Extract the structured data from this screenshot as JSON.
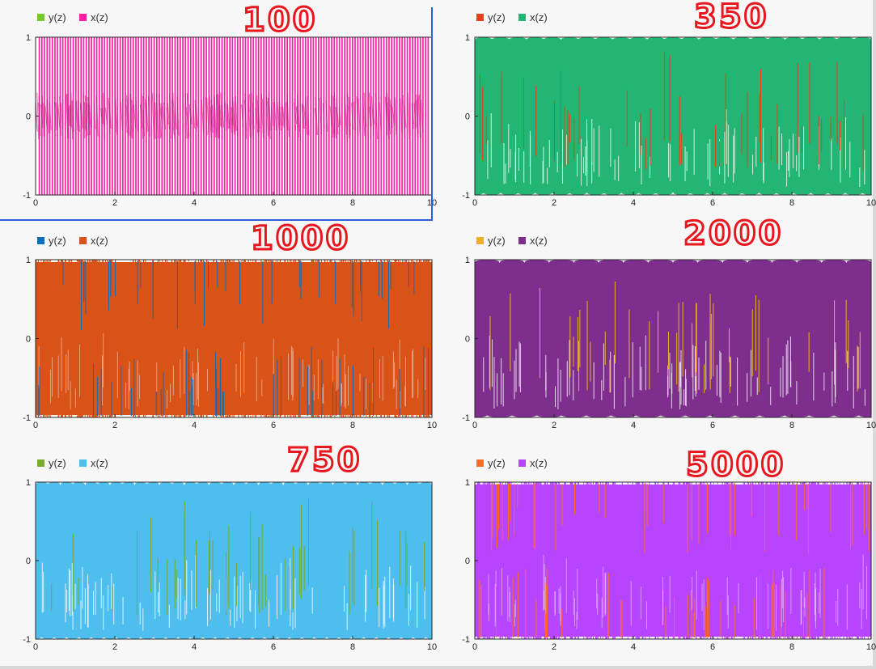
{
  "chart_data": [
    {
      "type": "line",
      "annotation": "100",
      "series": [
        {
          "name": "y(z)",
          "color": "#77c82a"
        },
        {
          "name": "x(z)",
          "color": "#ff1fa4"
        }
      ],
      "x_ticks": [
        "0",
        "2",
        "4",
        "6",
        "8",
        "10"
      ],
      "y_ticks": [
        "1",
        "0",
        "-1"
      ],
      "xlim": [
        0,
        10
      ],
      "ylim": [
        -1,
        1
      ]
    },
    {
      "type": "line",
      "annotation": "350",
      "series": [
        {
          "name": "y(z)",
          "color": "#f03c1c"
        },
        {
          "name": "x(z)",
          "color": "#22b573"
        }
      ],
      "x_ticks": [
        "0",
        "2",
        "4",
        "6",
        "8",
        "10"
      ],
      "y_ticks": [
        "1",
        "0",
        "-1"
      ],
      "xlim": [
        0,
        10
      ],
      "ylim": [
        -1,
        1
      ]
    },
    {
      "type": "line",
      "annotation": "1000",
      "series": [
        {
          "name": "y(z)",
          "color": "#0c6db8"
        },
        {
          "name": "x(z)",
          "color": "#d95319"
        }
      ],
      "x_ticks": [
        "0",
        "2",
        "4",
        "6",
        "8",
        "10"
      ],
      "y_ticks": [
        "1",
        "0",
        "-1"
      ],
      "xlim": [
        0,
        10
      ],
      "ylim": [
        -1,
        1
      ]
    },
    {
      "type": "line",
      "annotation": "2000",
      "series": [
        {
          "name": "y(z)",
          "color": "#edb120"
        },
        {
          "name": "x(z)",
          "color": "#7e2f8e"
        }
      ],
      "x_ticks": [
        "0",
        "2",
        "4",
        "6",
        "8",
        "10"
      ],
      "y_ticks": [
        "1",
        "0",
        "-1"
      ],
      "xlim": [
        0,
        10
      ],
      "ylim": [
        -1,
        1
      ]
    },
    {
      "type": "line",
      "annotation": "750",
      "series": [
        {
          "name": "y(z)",
          "color": "#77ac30"
        },
        {
          "name": "x(z)",
          "color": "#4dbeee"
        }
      ],
      "x_ticks": [
        "0",
        "2",
        "4",
        "6",
        "8",
        "10"
      ],
      "y_ticks": [
        "1",
        "0",
        "-1"
      ],
      "xlim": [
        0,
        10
      ],
      "ylim": [
        -1,
        1
      ]
    },
    {
      "type": "line",
      "annotation": "5000",
      "series": [
        {
          "name": "y(z)",
          "color": "#ff6929"
        },
        {
          "name": "x(z)",
          "color": "#b745ff"
        }
      ],
      "x_ticks": [
        "0",
        "2",
        "4",
        "6",
        "8",
        "10"
      ],
      "y_ticks": [
        "1",
        "0",
        "-1"
      ],
      "xlim": [
        0,
        10
      ],
      "ylim": [
        -1,
        1
      ]
    }
  ]
}
